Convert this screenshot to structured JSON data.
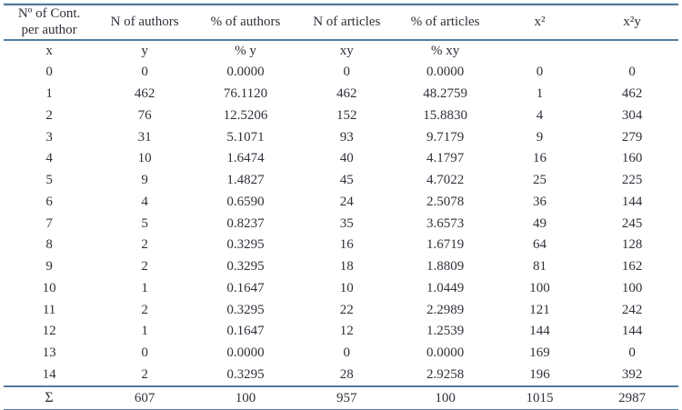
{
  "style": {
    "rule_color": "#527a9c",
    "text_color": "#30303a",
    "background_color": "#ffffff"
  },
  "table": {
    "headers": [
      "Nº of Cont.\nper author",
      "N of authors",
      "% of authors",
      "N of articles",
      "% of articles",
      "x²",
      "x²y"
    ],
    "subheaders": [
      "x",
      "y",
      "% y",
      "xy",
      "% xy",
      "",
      ""
    ],
    "rows": [
      [
        "0",
        "0",
        "0.0000",
        "0",
        "0.0000",
        "0",
        "0"
      ],
      [
        "1",
        "462",
        "76.1120",
        "462",
        "48.2759",
        "1",
        "462"
      ],
      [
        "2",
        "76",
        "12.5206",
        "152",
        "15.8830",
        "4",
        "304"
      ],
      [
        "3",
        "31",
        "5.1071",
        "93",
        "9.7179",
        "9",
        "279"
      ],
      [
        "4",
        "10",
        "1.6474",
        "40",
        "4.1797",
        "16",
        "160"
      ],
      [
        "5",
        "9",
        "1.4827",
        "45",
        "4.7022",
        "25",
        "225"
      ],
      [
        "6",
        "4",
        "0.6590",
        "24",
        "2.5078",
        "36",
        "144"
      ],
      [
        "7",
        "5",
        "0.8237",
        "35",
        "3.6573",
        "49",
        "245"
      ],
      [
        "8",
        "2",
        "0.3295",
        "16",
        "1.6719",
        "64",
        "128"
      ],
      [
        "9",
        "2",
        "0.3295",
        "18",
        "1.8809",
        "81",
        "162"
      ],
      [
        "10",
        "1",
        "0.1647",
        "10",
        "1.0449",
        "100",
        "100"
      ],
      [
        "11",
        "2",
        "0.3295",
        "22",
        "2.2989",
        "121",
        "242"
      ],
      [
        "12",
        "1",
        "0.1647",
        "12",
        "1.2539",
        "144",
        "144"
      ],
      [
        "13",
        "0",
        "0.0000",
        "0",
        "0.0000",
        "169",
        "0"
      ],
      [
        "14",
        "2",
        "0.3295",
        "28",
        "2.9258",
        "196",
        "392"
      ]
    ],
    "sum_row": [
      "Σ",
      "607",
      "100",
      "957",
      "100",
      "1015",
      "2987"
    ]
  }
}
